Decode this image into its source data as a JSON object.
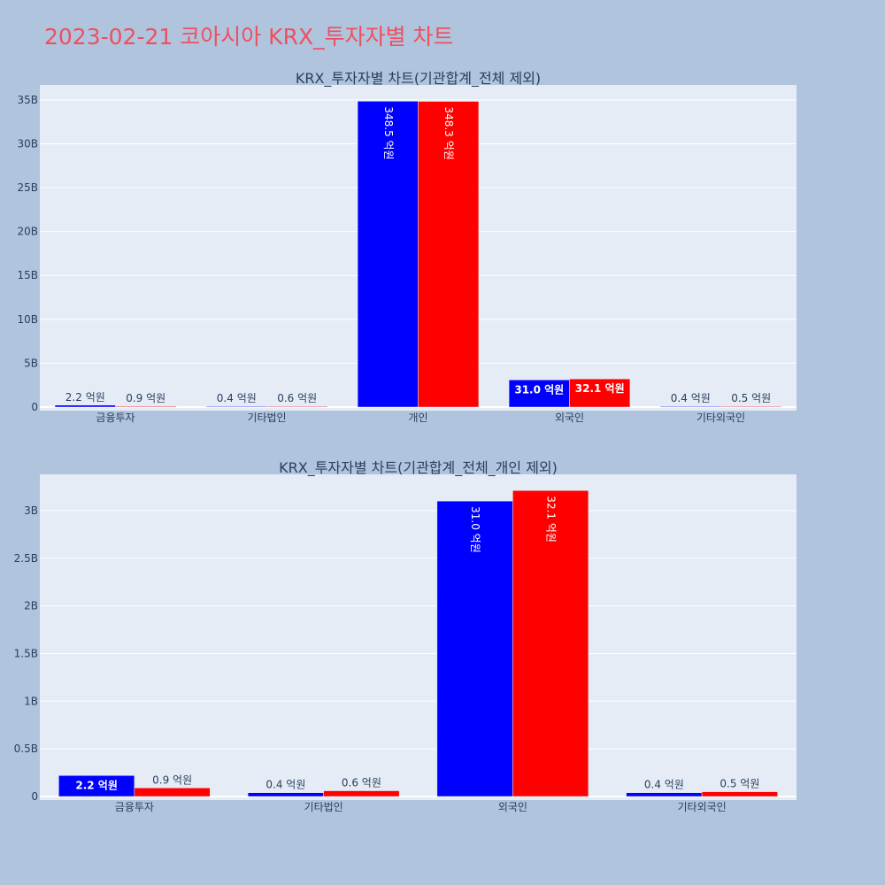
{
  "title": "2023-02-21 코아시아 KRX_투자자별 차트",
  "colors": {
    "buy": "#0000ff",
    "sell": "#ff0000",
    "plot_bg": "#e5ecf6",
    "page_bg": "#b0c4de"
  },
  "chart_data": [
    {
      "type": "bar",
      "title": "KRX_투자자별 차트(기관합계_전체 제외)",
      "categories": [
        "금융투자",
        "기타법인",
        "개인",
        "외국인",
        "기타외국인"
      ],
      "series": [
        {
          "color": "#0000ff",
          "values": [
            220000000,
            40000000,
            34850000000,
            3100000000,
            40000000
          ],
          "labels": [
            "2.2 억원",
            "0.4 억원",
            "348.5 억원",
            "31.0 억원",
            "0.4 억원"
          ]
        },
        {
          "color": "#ff0000",
          "values": [
            90000000,
            60000000,
            34830000000,
            3210000000,
            50000000
          ],
          "labels": [
            "0.9 억원",
            "0.6 억원",
            "348.3 억원",
            "32.1 억원",
            "0.5 억원"
          ]
        }
      ],
      "yticks": [
        0,
        5000000000,
        10000000000,
        15000000000,
        20000000000,
        25000000000,
        30000000000,
        35000000000
      ],
      "ytick_labels": [
        "0",
        "5B",
        "10B",
        "15B",
        "20B",
        "25B",
        "30B",
        "35B"
      ],
      "ylim": [
        0,
        36700000000
      ],
      "grid": true
    },
    {
      "type": "bar",
      "title": "KRX_투자자별 차트(기관합계_전체_개인 제외)",
      "categories": [
        "금융투자",
        "기타법인",
        "외국인",
        "기타외국인"
      ],
      "series": [
        {
          "color": "#0000ff",
          "values": [
            220000000,
            40000000,
            3100000000,
            40000000
          ],
          "labels": [
            "2.2 억원",
            "0.4 억원",
            "31.0 억원",
            "0.4 억원"
          ]
        },
        {
          "color": "#ff0000",
          "values": [
            90000000,
            60000000,
            3210000000,
            50000000
          ],
          "labels": [
            "0.9 억원",
            "0.6 억원",
            "32.1 억원",
            "0.5 억원"
          ]
        }
      ],
      "yticks": [
        0,
        500000000,
        1000000000,
        1500000000,
        2000000000,
        2500000000,
        3000000000
      ],
      "ytick_labels": [
        "0",
        "0.5B",
        "1B",
        "1.5B",
        "2B",
        "2.5B",
        "3B"
      ],
      "ylim": [
        0,
        3380000000
      ],
      "grid": true
    }
  ]
}
